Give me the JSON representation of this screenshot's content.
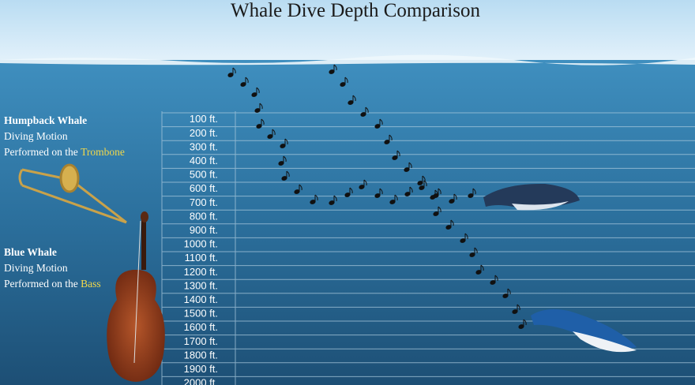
{
  "title": "Whale Dive Depth Comparison",
  "depth_labels": [
    "100 ft.",
    "200 ft.",
    "300 ft.",
    "400 ft.",
    "500 ft.",
    "600 ft.",
    "700 ft.",
    "800 ft.",
    "900 ft.",
    "1000 ft.",
    "1100 ft.",
    "1200 ft.",
    "1300 ft.",
    "1400 ft.",
    "1500 ft.",
    "1600 ft.",
    "1700 ft.",
    "1800 ft.",
    "1900 ft.",
    "2000 ft."
  ],
  "humpback": {
    "name": "Humpback Whale",
    "line1": "Diving Motion",
    "line2": "Performed on the",
    "instrument": "Trombone"
  },
  "blue": {
    "name": "Blue Whale",
    "line1": "Diving Motion",
    "line2": "Performed on the",
    "instrument": "Bass"
  }
}
